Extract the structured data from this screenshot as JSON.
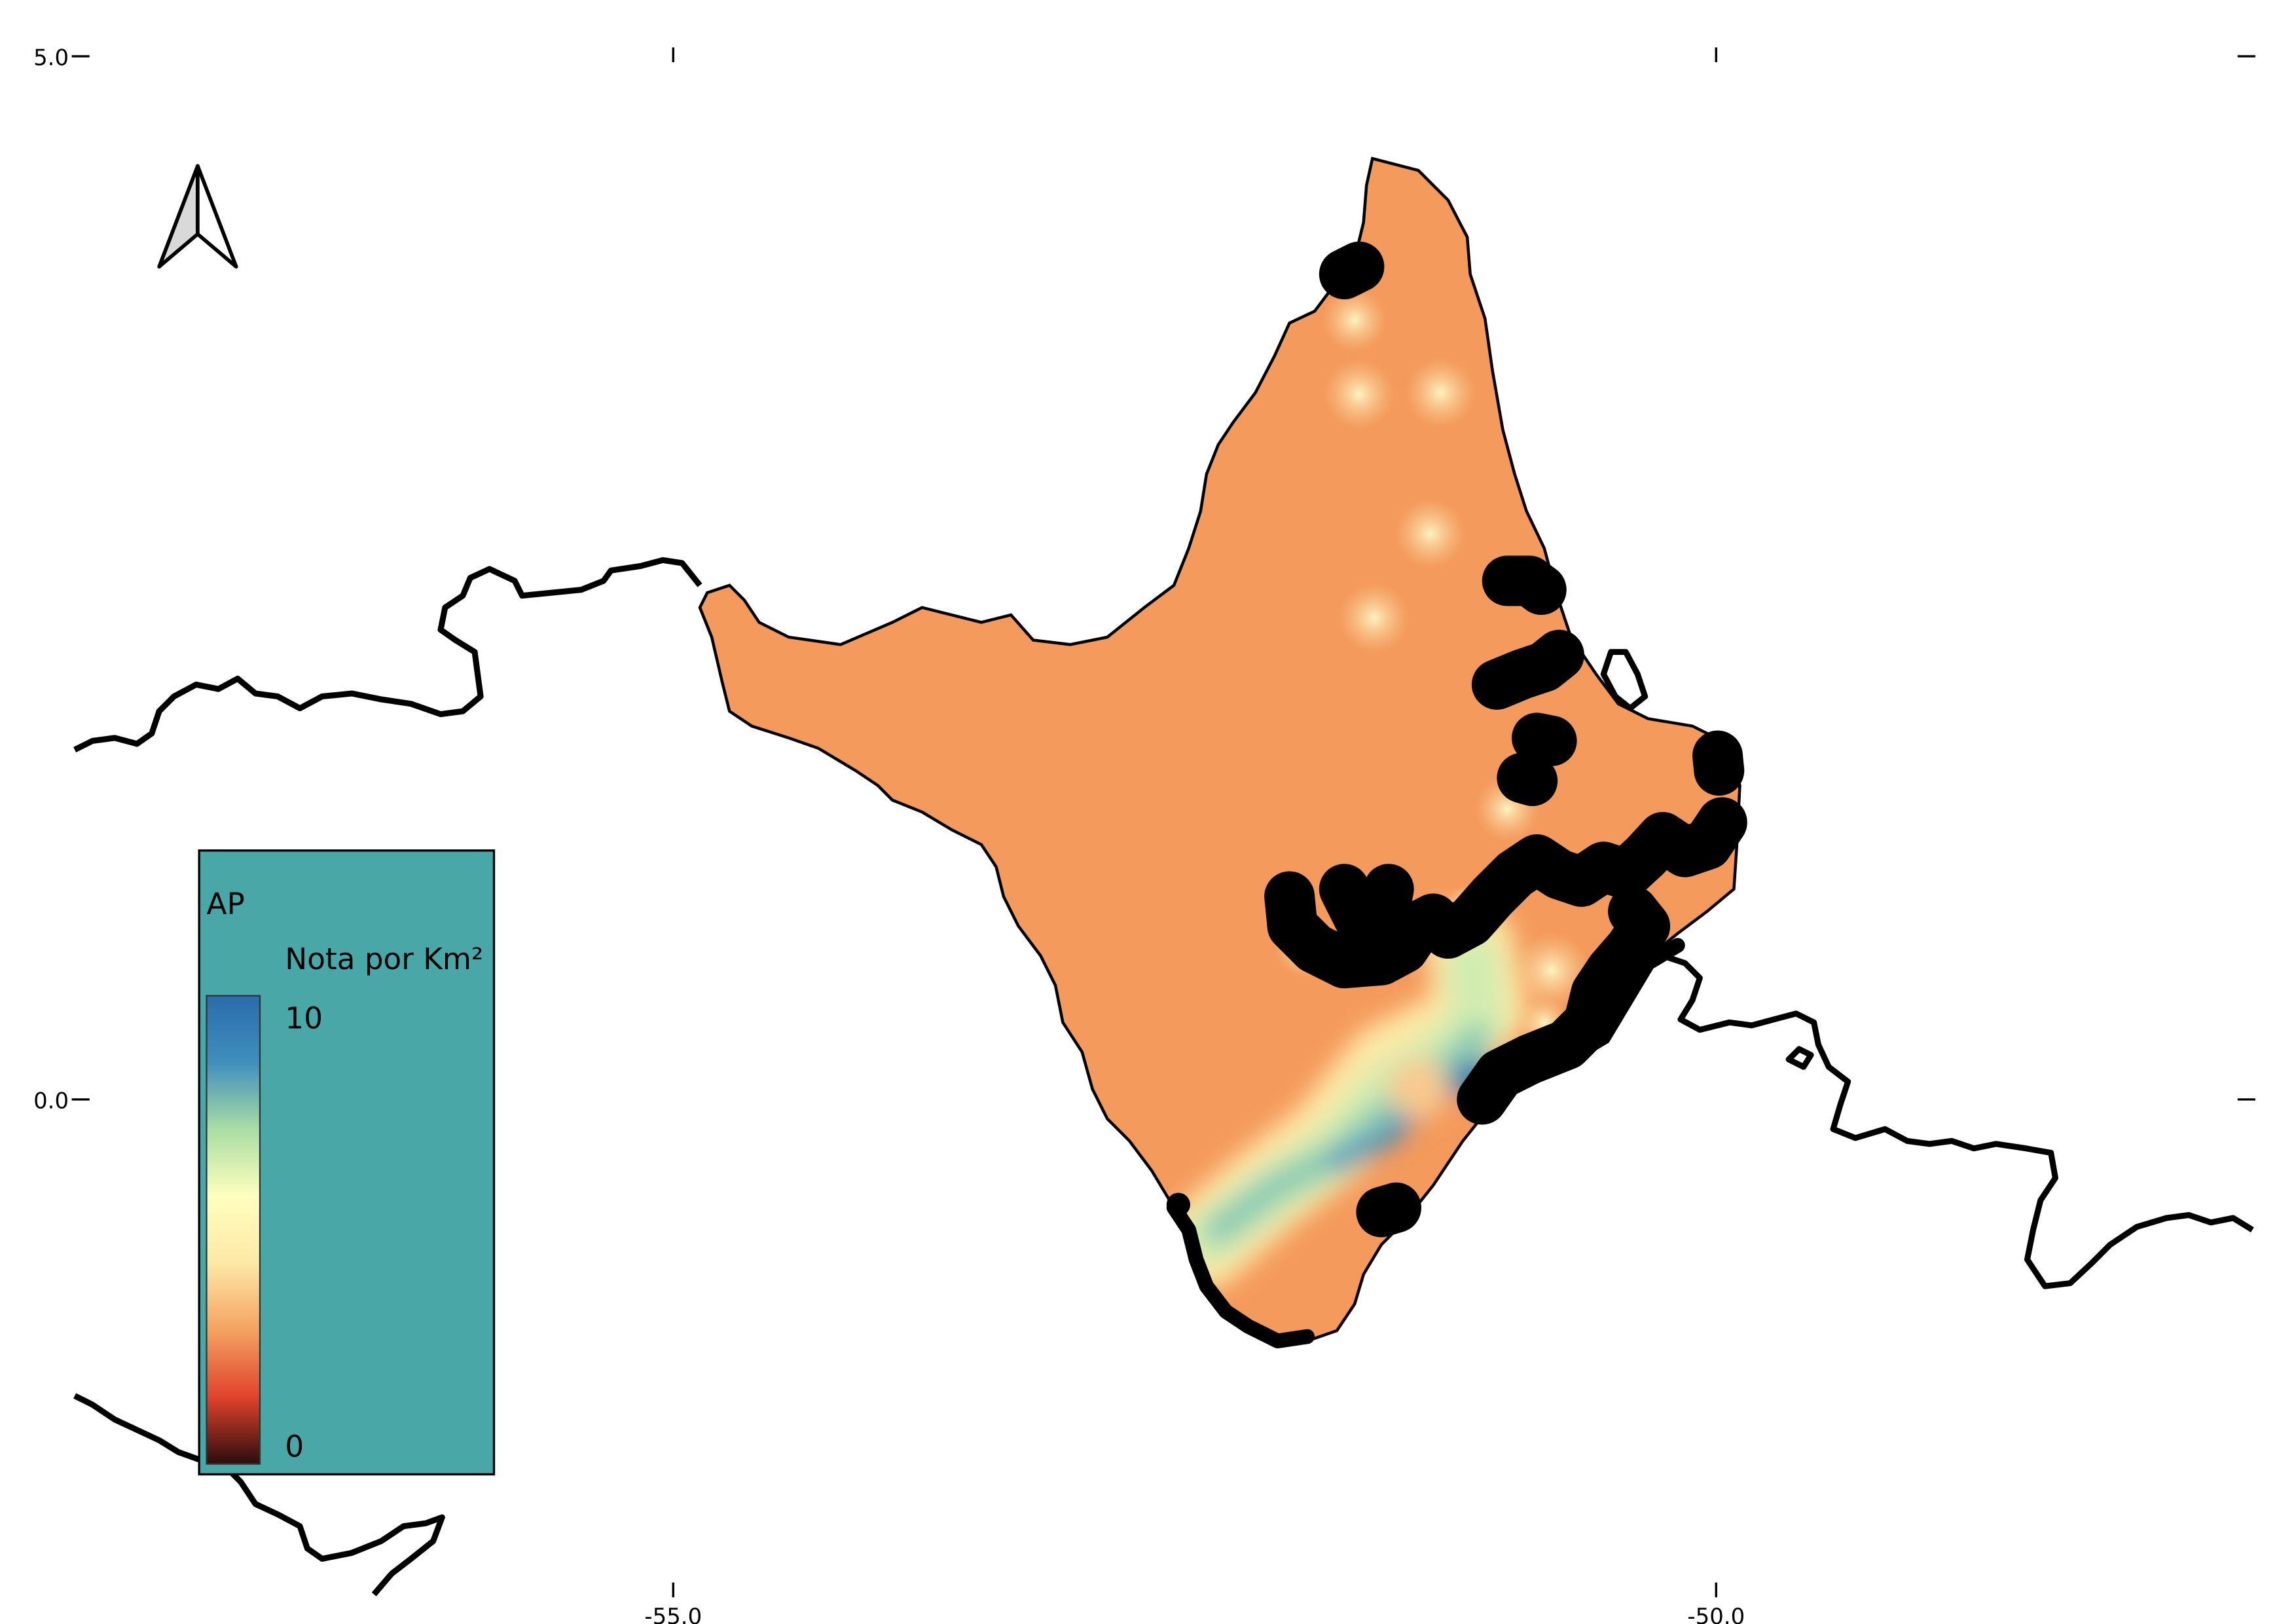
{
  "map": {
    "state_code": "AP",
    "colors": {
      "state_fill": "#f49a5c",
      "legend_background": "#4aa7a8",
      "high_value": "#2d6fae",
      "low_value": "#2a0d0d",
      "hotspot": "#fce6a8",
      "border": "#000000"
    }
  },
  "axes": {
    "y_ticks": [
      "5.0",
      "0.0"
    ],
    "x_ticks": [
      "-55.0",
      "-50.0"
    ]
  },
  "north_arrow": {
    "icon": "north-arrow-icon"
  },
  "legend": {
    "title": "AP",
    "subtitle": "Nota por Km²",
    "max_label": "10",
    "min_label": "0",
    "ramp": [
      "#2a0d0d",
      "#e0432c",
      "#f4a261",
      "#fde8a6",
      "#ffffbf",
      "#abdda4",
      "#3f8fbd",
      "#2b6bab"
    ]
  }
}
